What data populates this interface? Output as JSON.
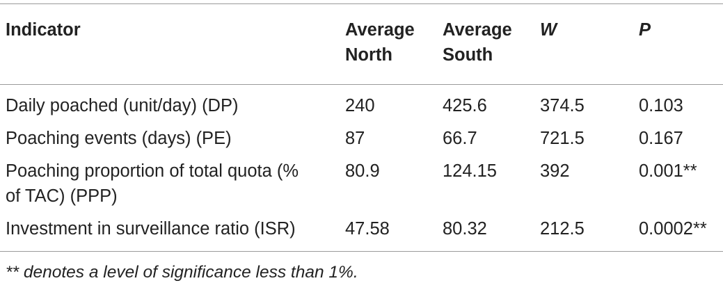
{
  "table": {
    "headers": {
      "indicator": "Indicator",
      "north_l1": "Average",
      "north_l2": "North",
      "south_l1": "Average",
      "south_l2": "South",
      "w": "W",
      "p": "P"
    },
    "rows": [
      {
        "indicator": "Daily poached (unit/day) (DP)",
        "north": "240",
        "south": "425.6",
        "w": "374.5",
        "p": "0.103"
      },
      {
        "indicator": "Poaching events (days) (PE)",
        "north": "87",
        "south": "66.7",
        "w": "721.5",
        "p": "0.167"
      },
      {
        "indicator_l1": "Poaching proportion of total quota (%",
        "indicator_l2": "of TAC) (PPP)",
        "north": "80.9",
        "south": "124.15",
        "w": "392",
        "p": "0.001**"
      },
      {
        "indicator": "Investment in surveillance ratio (ISR)",
        "north": "47.58",
        "south": "80.32",
        "w": "212.5",
        "p": "0.0002**"
      }
    ]
  },
  "footnote": "** denotes a level of significance less than 1%."
}
